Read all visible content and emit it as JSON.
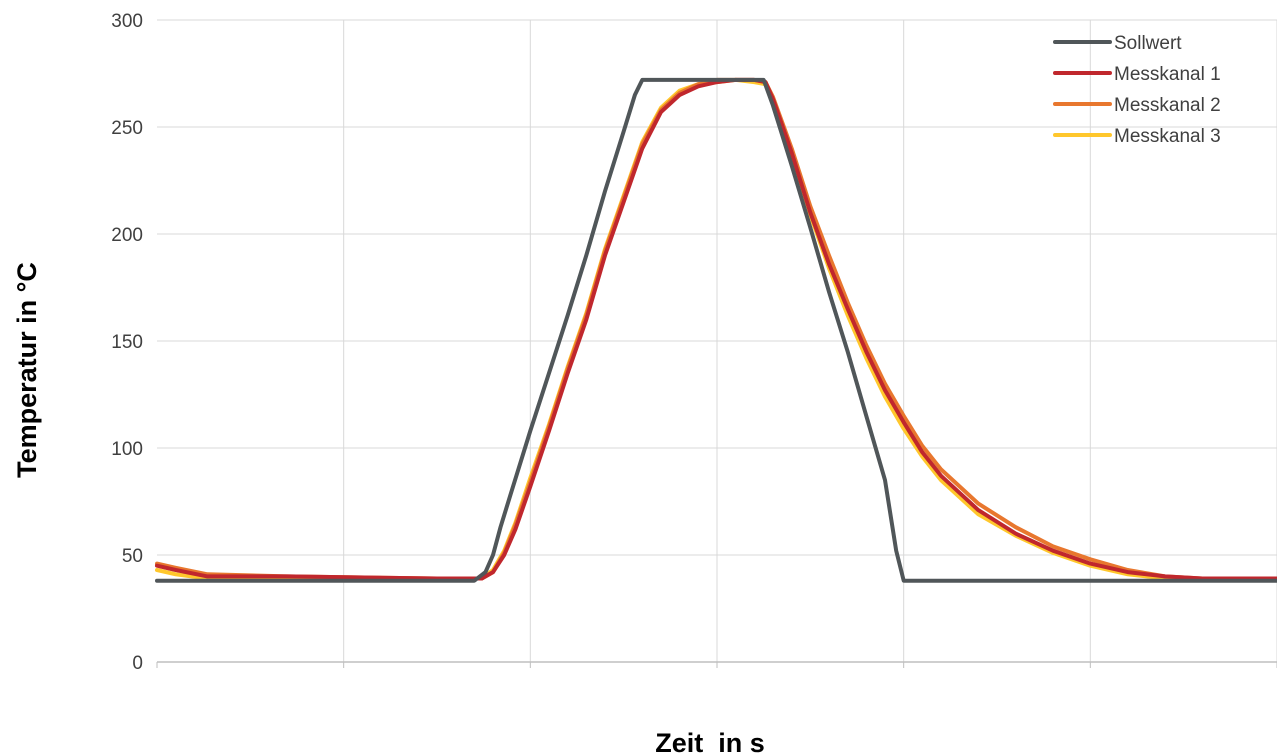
{
  "chart_data": {
    "type": "line",
    "title": "",
    "xlabel": "Zeit  in s",
    "ylabel": "Temperatur in °C",
    "xlim": [
      0,
      600
    ],
    "ylim": [
      0,
      300
    ],
    "yticks": [
      0,
      50,
      100,
      150,
      200,
      250,
      300
    ],
    "xticks": [
      0,
      100,
      200,
      300,
      400,
      500,
      600
    ],
    "grid": true,
    "legend_position": "top-right",
    "series": [
      {
        "name": "Sollwert",
        "color": "#505659",
        "x": [
          0,
          27,
          150,
          170,
          176,
          180,
          184,
          190,
          200,
          210,
          220,
          230,
          240,
          250,
          256,
          260,
          300,
          325,
          330,
          340,
          350,
          360,
          370,
          380,
          390,
          396,
          400,
          420,
          500,
          600
        ],
        "y": [
          38,
          38,
          38,
          38,
          42,
          50,
          63,
          80,
          108,
          135,
          162,
          190,
          220,
          248,
          265,
          272,
          272,
          272,
          260,
          232,
          203,
          173,
          145,
          115,
          85,
          52,
          38,
          38,
          38,
          38
        ]
      },
      {
        "name": "Messkanal 1",
        "color": "#c0272d",
        "x": [
          0,
          10,
          27,
          70,
          150,
          174,
          180,
          186,
          192,
          200,
          210,
          220,
          230,
          240,
          250,
          260,
          270,
          280,
          290,
          300,
          310,
          320,
          326,
          330,
          340,
          350,
          360,
          370,
          380,
          390,
          400,
          410,
          420,
          440,
          460,
          480,
          500,
          520,
          540,
          560,
          580,
          600
        ],
        "y": [
          45,
          43,
          40,
          40,
          39,
          39,
          42,
          50,
          62,
          82,
          108,
          135,
          160,
          190,
          215,
          240,
          257,
          265,
          269,
          271,
          272,
          272,
          271,
          263,
          238,
          210,
          186,
          165,
          145,
          127,
          112,
          98,
          87,
          71,
          60,
          52,
          46,
          42,
          40,
          39,
          39,
          39
        ]
      },
      {
        "name": "Messkanal 2",
        "color": "#e8772e",
        "x": [
          0,
          10,
          27,
          70,
          150,
          174,
          180,
          186,
          192,
          200,
          210,
          220,
          230,
          240,
          250,
          260,
          270,
          280,
          290,
          300,
          310,
          320,
          326,
          330,
          340,
          350,
          360,
          370,
          380,
          390,
          400,
          410,
          420,
          440,
          460,
          480,
          500,
          520,
          540,
          560,
          580,
          600
        ],
        "y": [
          46,
          44,
          41,
          40,
          39,
          39,
          42,
          51,
          64,
          84,
          110,
          137,
          162,
          192,
          217,
          242,
          258,
          266,
          270,
          272,
          272,
          272,
          271,
          264,
          240,
          213,
          190,
          168,
          148,
          130,
          115,
          101,
          90,
          74,
          63,
          54,
          48,
          43,
          40,
          39,
          39,
          39
        ]
      },
      {
        "name": "Messkanal 3",
        "color": "#ffc72c",
        "x": [
          0,
          10,
          27,
          70,
          150,
          174,
          180,
          186,
          192,
          200,
          210,
          220,
          230,
          240,
          250,
          260,
          270,
          280,
          290,
          300,
          310,
          320,
          326,
          330,
          340,
          350,
          360,
          370,
          380,
          390,
          400,
          410,
          420,
          440,
          460,
          480,
          500,
          520,
          540,
          560,
          580,
          600
        ],
        "y": [
          43,
          41,
          39,
          39,
          39,
          39,
          43,
          52,
          65,
          86,
          111,
          138,
          163,
          193,
          218,
          243,
          259,
          267,
          270,
          271,
          272,
          271,
          270,
          262,
          237,
          209,
          184,
          162,
          142,
          124,
          109,
          96,
          85,
          69,
          59,
          51,
          45,
          41,
          39,
          39,
          39,
          39
        ]
      }
    ]
  }
}
